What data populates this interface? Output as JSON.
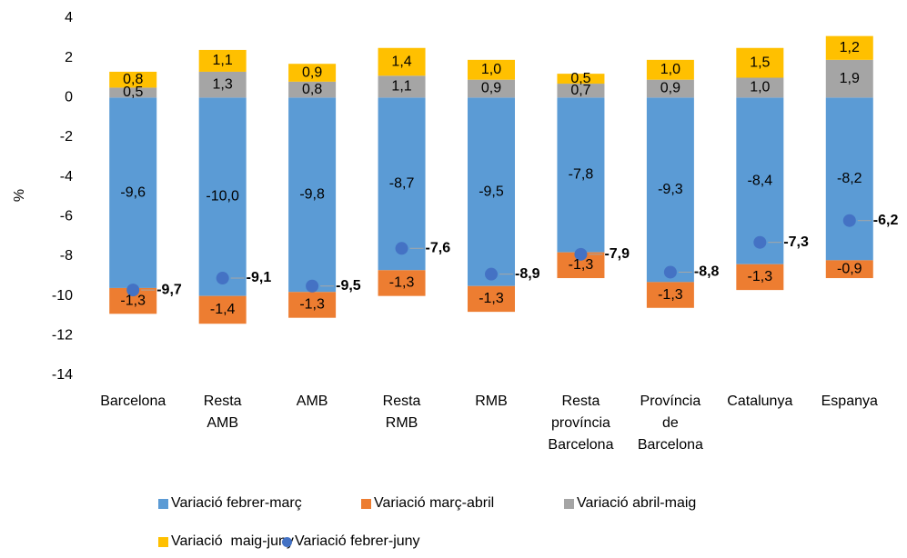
{
  "chart_data": {
    "type": "bar",
    "stacked": true,
    "y_label": "%",
    "categories": [
      "Barcelona",
      "Resta AMB",
      "AMB",
      "Resta RMB",
      "RMB",
      "Resta província Barcelona",
      "Província de Barcelona",
      "Catalunya",
      "Espanya"
    ],
    "series": [
      {
        "name": "Variació febrer-març",
        "color": "#5b9bd5",
        "values": [
          -9.6,
          -10.0,
          -9.8,
          -8.7,
          -9.5,
          -7.8,
          -9.3,
          -8.4,
          -8.2
        ],
        "value_labels": [
          "-9,6",
          "-10,0",
          "-9,8",
          "-8,7",
          "-9,5",
          "-7,8",
          "-9,3",
          "-8,4",
          "-8,2"
        ]
      },
      {
        "name": "Variació març-abril",
        "color": "#ed7d31",
        "values": [
          -1.3,
          -1.4,
          -1.3,
          -1.3,
          -1.3,
          -1.3,
          -1.3,
          -1.3,
          -0.9
        ],
        "value_labels": [
          "-1,3",
          "-1,4",
          "-1,3",
          "-1,3",
          "-1,3",
          "-1,3",
          "-1,3",
          "-1,3",
          "-0,9"
        ]
      },
      {
        "name": "Variació abril-maig",
        "color": "#a5a5a5",
        "values": [
          0.5,
          1.3,
          0.8,
          1.1,
          0.9,
          0.7,
          0.9,
          1.0,
          1.9
        ],
        "value_labels": [
          "0,5",
          "1,3",
          "0,8",
          "1,1",
          "0,9",
          "0,7",
          "0,9",
          "1,0",
          "1,9"
        ]
      },
      {
        "name": "Variació  maig-juny",
        "color": "#ffc000",
        "values": [
          0.8,
          1.1,
          0.9,
          1.4,
          1.0,
          0.5,
          1.0,
          1.5,
          1.2
        ],
        "value_labels": [
          "0,8",
          "1,1",
          "0,9",
          "1,4",
          "1,0",
          "0,5",
          "1,0",
          "1,5",
          "1,2"
        ]
      },
      {
        "name": "Variació febrer-juny",
        "type": "scatter",
        "color": "#4472c4",
        "values": [
          -9.7,
          -9.1,
          -9.5,
          -7.6,
          -8.9,
          -7.9,
          -8.8,
          -7.3,
          -6.2
        ],
        "value_labels": [
          "-9,7",
          "-9,1",
          "-9,5",
          "-7,6",
          "-8,9",
          "-7,9",
          "-8,8",
          "-7,3",
          "-6,2"
        ]
      }
    ],
    "ylim": [
      -14,
      4
    ],
    "yticks": [
      -14,
      -12,
      -10,
      -8,
      -6,
      -4,
      -2,
      0,
      2,
      4
    ],
    "grid": false
  }
}
